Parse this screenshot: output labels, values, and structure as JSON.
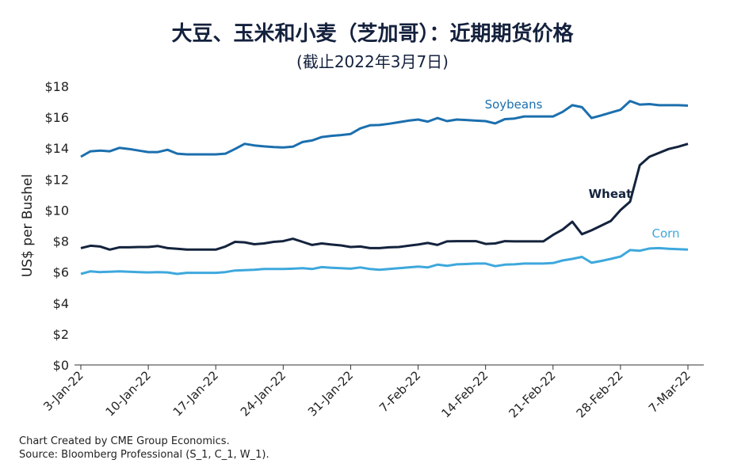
{
  "chart_data": {
    "type": "line",
    "title": "大豆、玉米和小麦（芝加哥）：近期期货价格",
    "subtitle": "(截止2022年3月7日)",
    "ylabel": "US$ per Bushel",
    "ylim": [
      0,
      18
    ],
    "yticks": [
      "$0",
      "$2",
      "$4",
      "$6",
      "$8",
      "$10",
      "$12",
      "$14",
      "$16",
      "$18"
    ],
    "xticks": [
      "3-Jan-22",
      "10-Jan-22",
      "17-Jan-22",
      "24-Jan-22",
      "31-Jan-22",
      "7-Feb-22",
      "14-Feb-22",
      "21-Feb-22",
      "28-Feb-22",
      "7-Mar-22"
    ],
    "grid": false,
    "legend": "inline labels",
    "series": [
      {
        "name": "Soybeans",
        "color": "#1b6fae",
        "values": [
          [
            0,
            13.45
          ],
          [
            1,
            13.8
          ],
          [
            2,
            13.85
          ],
          [
            3,
            13.8
          ],
          [
            4,
            14.02
          ],
          [
            5,
            13.95
          ],
          [
            6,
            13.85
          ],
          [
            7,
            13.75
          ],
          [
            8,
            13.75
          ],
          [
            9,
            13.9
          ],
          [
            10,
            13.65
          ],
          [
            11,
            13.6
          ],
          [
            12,
            13.6
          ],
          [
            13,
            13.6
          ],
          [
            14,
            13.6
          ],
          [
            15,
            13.65
          ],
          [
            16,
            13.95
          ],
          [
            17,
            14.28
          ],
          [
            18,
            14.18
          ],
          [
            19,
            14.12
          ],
          [
            20,
            14.08
          ],
          [
            21,
            14.05
          ],
          [
            22,
            14.1
          ],
          [
            23,
            14.4
          ],
          [
            24,
            14.5
          ],
          [
            25,
            14.72
          ],
          [
            26,
            14.8
          ],
          [
            27,
            14.85
          ],
          [
            28,
            14.92
          ],
          [
            29,
            15.28
          ],
          [
            30,
            15.48
          ],
          [
            31,
            15.5
          ],
          [
            32,
            15.58
          ],
          [
            33,
            15.68
          ],
          [
            34,
            15.78
          ],
          [
            35,
            15.85
          ],
          [
            36,
            15.72
          ],
          [
            37,
            15.95
          ],
          [
            38,
            15.75
          ],
          [
            39,
            15.85
          ],
          [
            40,
            15.82
          ],
          [
            41,
            15.78
          ],
          [
            42,
            15.75
          ],
          [
            43,
            15.6
          ],
          [
            44,
            15.88
          ],
          [
            45,
            15.92
          ],
          [
            46,
            16.05
          ],
          [
            47,
            16.05
          ],
          [
            48,
            16.05
          ],
          [
            49,
            16.05
          ],
          [
            50,
            16.35
          ],
          [
            51,
            16.78
          ],
          [
            52,
            16.65
          ],
          [
            53,
            15.95
          ],
          [
            54,
            16.12
          ],
          [
            55,
            16.3
          ],
          [
            56,
            16.48
          ],
          [
            57,
            17.05
          ],
          [
            58,
            16.82
          ],
          [
            59,
            16.85
          ],
          [
            60,
            16.78
          ],
          [
            61,
            16.78
          ],
          [
            62,
            16.78
          ],
          [
            63,
            16.75
          ]
        ]
      },
      {
        "name": "Wheat",
        "color": "#14233d",
        "values": [
          [
            0,
            7.55
          ],
          [
            1,
            7.7
          ],
          [
            2,
            7.65
          ],
          [
            3,
            7.45
          ],
          [
            4,
            7.6
          ],
          [
            5,
            7.6
          ],
          [
            6,
            7.62
          ],
          [
            7,
            7.62
          ],
          [
            8,
            7.68
          ],
          [
            9,
            7.55
          ],
          [
            10,
            7.5
          ],
          [
            11,
            7.45
          ],
          [
            12,
            7.45
          ],
          [
            13,
            7.45
          ],
          [
            14,
            7.45
          ],
          [
            15,
            7.65
          ],
          [
            16,
            7.95
          ],
          [
            17,
            7.92
          ],
          [
            18,
            7.8
          ],
          [
            19,
            7.85
          ],
          [
            20,
            7.95
          ],
          [
            21,
            8.0
          ],
          [
            22,
            8.15
          ],
          [
            23,
            7.95
          ],
          [
            24,
            7.75
          ],
          [
            25,
            7.85
          ],
          [
            26,
            7.78
          ],
          [
            27,
            7.72
          ],
          [
            28,
            7.62
          ],
          [
            29,
            7.65
          ],
          [
            30,
            7.55
          ],
          [
            31,
            7.55
          ],
          [
            32,
            7.6
          ],
          [
            33,
            7.62
          ],
          [
            34,
            7.7
          ],
          [
            35,
            7.78
          ],
          [
            36,
            7.88
          ],
          [
            37,
            7.75
          ],
          [
            38,
            7.98
          ],
          [
            39,
            8.0
          ],
          [
            40,
            8.0
          ],
          [
            41,
            8.0
          ],
          [
            42,
            7.82
          ],
          [
            43,
            7.85
          ],
          [
            44,
            8.0
          ],
          [
            45,
            7.98
          ],
          [
            46,
            7.98
          ],
          [
            47,
            7.98
          ],
          [
            48,
            7.98
          ],
          [
            49,
            8.4
          ],
          [
            50,
            8.75
          ],
          [
            51,
            9.25
          ],
          [
            52,
            8.45
          ],
          [
            53,
            8.7
          ],
          [
            54,
            9.0
          ],
          [
            55,
            9.3
          ],
          [
            56,
            10.0
          ],
          [
            57,
            10.55
          ],
          [
            58,
            12.9
          ],
          [
            59,
            13.45
          ],
          [
            60,
            13.7
          ],
          [
            61,
            13.95
          ],
          [
            62,
            14.1
          ],
          [
            63,
            14.28
          ]
        ]
      },
      {
        "name": "Corn",
        "color": "#3ea8dc",
        "values": [
          [
            0,
            5.88
          ],
          [
            1,
            6.05
          ],
          [
            2,
            6.0
          ],
          [
            3,
            6.02
          ],
          [
            4,
            6.05
          ],
          [
            5,
            6.02
          ],
          [
            6,
            6.0
          ],
          [
            7,
            5.98
          ],
          [
            8,
            6.0
          ],
          [
            9,
            5.98
          ],
          [
            10,
            5.88
          ],
          [
            11,
            5.95
          ],
          [
            12,
            5.95
          ],
          [
            13,
            5.95
          ],
          [
            14,
            5.95
          ],
          [
            15,
            6.0
          ],
          [
            16,
            6.1
          ],
          [
            17,
            6.12
          ],
          [
            18,
            6.15
          ],
          [
            19,
            6.2
          ],
          [
            20,
            6.2
          ],
          [
            21,
            6.2
          ],
          [
            22,
            6.22
          ],
          [
            23,
            6.25
          ],
          [
            24,
            6.2
          ],
          [
            25,
            6.32
          ],
          [
            26,
            6.28
          ],
          [
            27,
            6.25
          ],
          [
            28,
            6.22
          ],
          [
            29,
            6.3
          ],
          [
            30,
            6.2
          ],
          [
            31,
            6.15
          ],
          [
            32,
            6.2
          ],
          [
            33,
            6.25
          ],
          [
            34,
            6.3
          ],
          [
            35,
            6.35
          ],
          [
            36,
            6.3
          ],
          [
            37,
            6.48
          ],
          [
            38,
            6.4
          ],
          [
            39,
            6.5
          ],
          [
            40,
            6.52
          ],
          [
            41,
            6.55
          ],
          [
            42,
            6.55
          ],
          [
            43,
            6.38
          ],
          [
            44,
            6.48
          ],
          [
            45,
            6.5
          ],
          [
            46,
            6.55
          ],
          [
            47,
            6.55
          ],
          [
            48,
            6.55
          ],
          [
            49,
            6.58
          ],
          [
            50,
            6.75
          ],
          [
            51,
            6.85
          ],
          [
            52,
            6.98
          ],
          [
            53,
            6.6
          ],
          [
            54,
            6.72
          ],
          [
            55,
            6.85
          ],
          [
            56,
            7.0
          ],
          [
            57,
            7.42
          ],
          [
            58,
            7.38
          ],
          [
            59,
            7.52
          ],
          [
            60,
            7.55
          ],
          [
            61,
            7.5
          ],
          [
            62,
            7.48
          ],
          [
            63,
            7.45
          ]
        ]
      }
    ]
  },
  "footer": {
    "line1": "Chart Created by CME Group Economics.",
    "line2": "Source:  Bloomberg Professional (S_1, C_1, W_1)."
  }
}
